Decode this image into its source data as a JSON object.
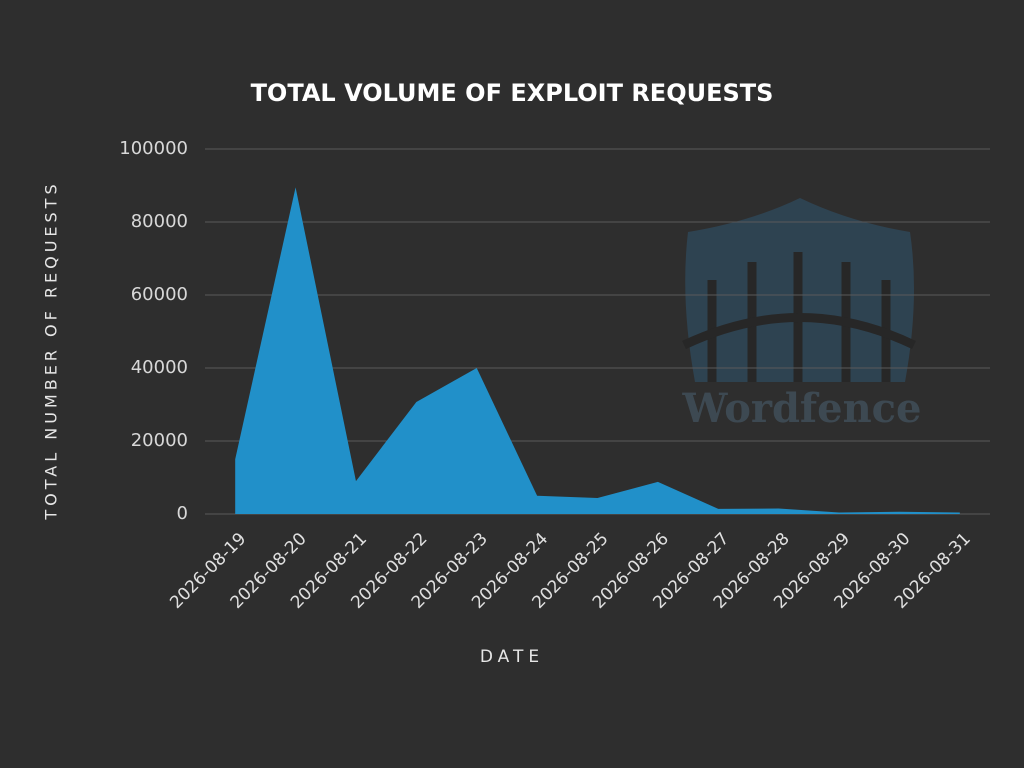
{
  "chart_data": {
    "type": "area",
    "title": "TOTAL VOLUME OF EXPLOIT REQUESTS",
    "x_label": "DATE",
    "y_label": "TOTAL NUMBER OF REQUESTS",
    "watermark": "Wordfence",
    "categories": [
      "2026-08-19",
      "2026-08-20",
      "2026-08-21",
      "2026-08-22",
      "2026-08-23",
      "2026-08-24",
      "2026-08-25",
      "2026-08-26",
      "2026-08-27",
      "2026-08-28",
      "2026-08-29",
      "2026-08-30",
      "2026-08-31"
    ],
    "values": [
      15000,
      89500,
      9000,
      30700,
      40000,
      5000,
      4400,
      8800,
      1400,
      1500,
      400,
      600,
      400
    ],
    "color": "#2190c9",
    "ylim": [
      0,
      100000
    ],
    "yticks": [
      0,
      20000,
      40000,
      60000,
      80000,
      100000
    ],
    "grid": true
  }
}
